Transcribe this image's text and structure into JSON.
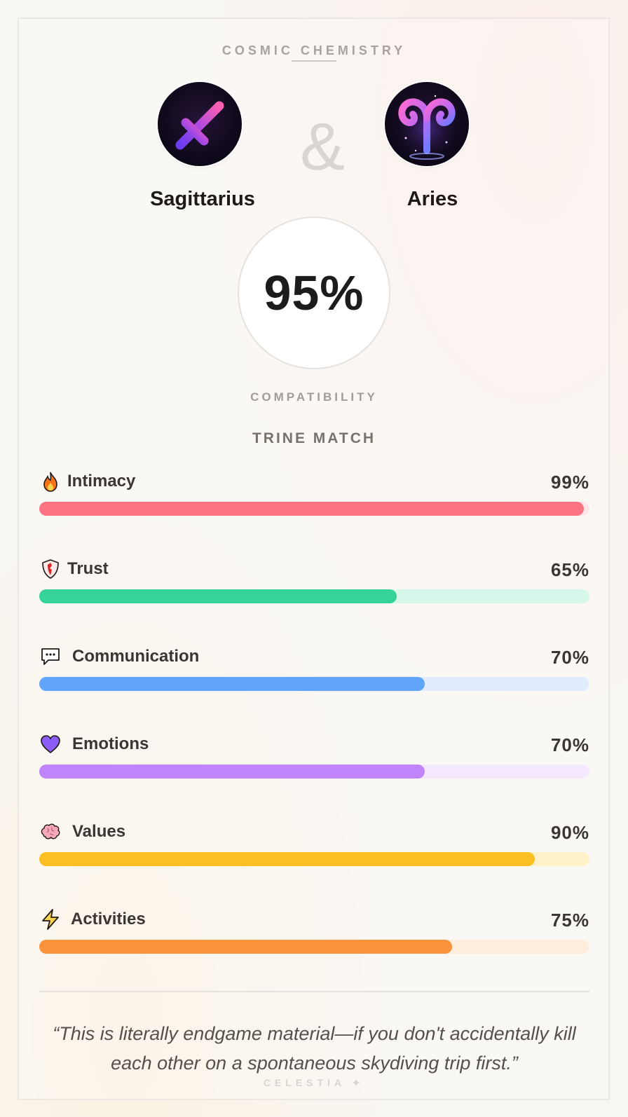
{
  "header": {
    "title": "COSMIC CHEMISTRY"
  },
  "signs": [
    {
      "name": "Sagittarius",
      "icon": "sagittarius-arrow-icon"
    },
    {
      "name": "Aries",
      "icon": "aries-ram-icon"
    }
  ],
  "ampersand": "&",
  "score": {
    "value": "95%",
    "label": "COMPATIBILITY",
    "match_type": "TRINE MATCH"
  },
  "metrics": [
    {
      "name": "Intimacy",
      "value": "99%",
      "percent": 99,
      "icon": "fire-icon",
      "color": "#fc7484",
      "track": "#ffe6e9"
    },
    {
      "name": "Trust",
      "value": "65%",
      "percent": 65,
      "icon": "shield-icon",
      "color": "#36d399",
      "track": "#d6f8ea"
    },
    {
      "name": "Communication",
      "value": "70%",
      "percent": 70,
      "icon": "speech-bubble-icon",
      "color": "#60a5fa",
      "track": "#e1edfe"
    },
    {
      "name": "Emotions",
      "value": "70%",
      "percent": 70,
      "icon": "heart-icon",
      "color": "#c084fc",
      "track": "#f3e8fe"
    },
    {
      "name": "Values",
      "value": "90%",
      "percent": 90,
      "icon": "brain-icon",
      "color": "#fbbf24",
      "track": "#fff1c9"
    },
    {
      "name": "Activities",
      "value": "75%",
      "percent": 75,
      "icon": "lightning-icon",
      "color": "#fb923c",
      "track": "#ffeedd"
    }
  ],
  "quote": "“This is literally endgame material—if you don't accidentally kill each other on a spontaneous skydiving trip first.”",
  "footer": "CELESTIA ✦"
}
